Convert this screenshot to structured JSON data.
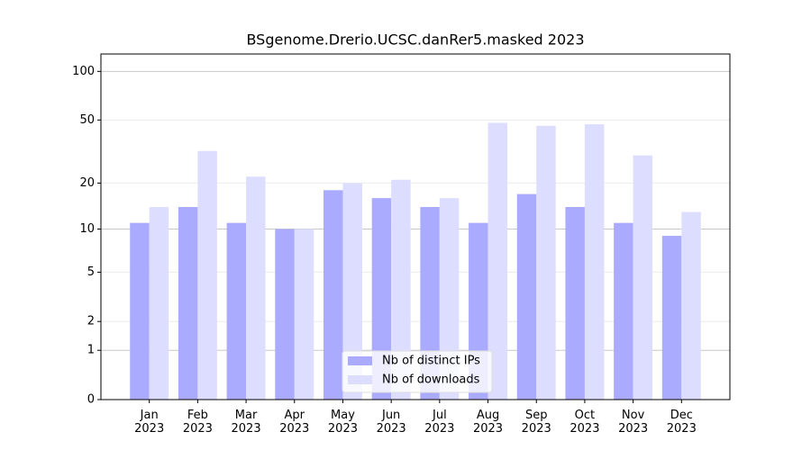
{
  "chart_data": {
    "type": "bar",
    "title": "BSgenome.Drerio.UCSC.danRer5.masked 2023",
    "categories": [
      "Jan 2023",
      "Feb 2023",
      "Mar 2023",
      "Apr 2023",
      "May 2023",
      "Jun 2023",
      "Jul 2023",
      "Aug 2023",
      "Sep 2023",
      "Oct 2023",
      "Nov 2023",
      "Dec 2023"
    ],
    "series": [
      {
        "name": "Nb of distinct IPs",
        "color": "#aaaaff",
        "values": [
          11,
          14,
          11,
          10,
          18,
          16,
          14,
          11,
          17,
          14,
          11,
          9
        ]
      },
      {
        "name": "Nb of downloads",
        "color": "#ddddff",
        "values": [
          14,
          32,
          22,
          10,
          20,
          21,
          16,
          48,
          46,
          47,
          30,
          13
        ]
      }
    ],
    "yscale": "log1p",
    "ylim": [
      0,
      128
    ],
    "yticks": [
      0,
      1,
      2,
      5,
      10,
      20,
      50,
      100
    ],
    "grid": true,
    "legend": "lower center"
  }
}
